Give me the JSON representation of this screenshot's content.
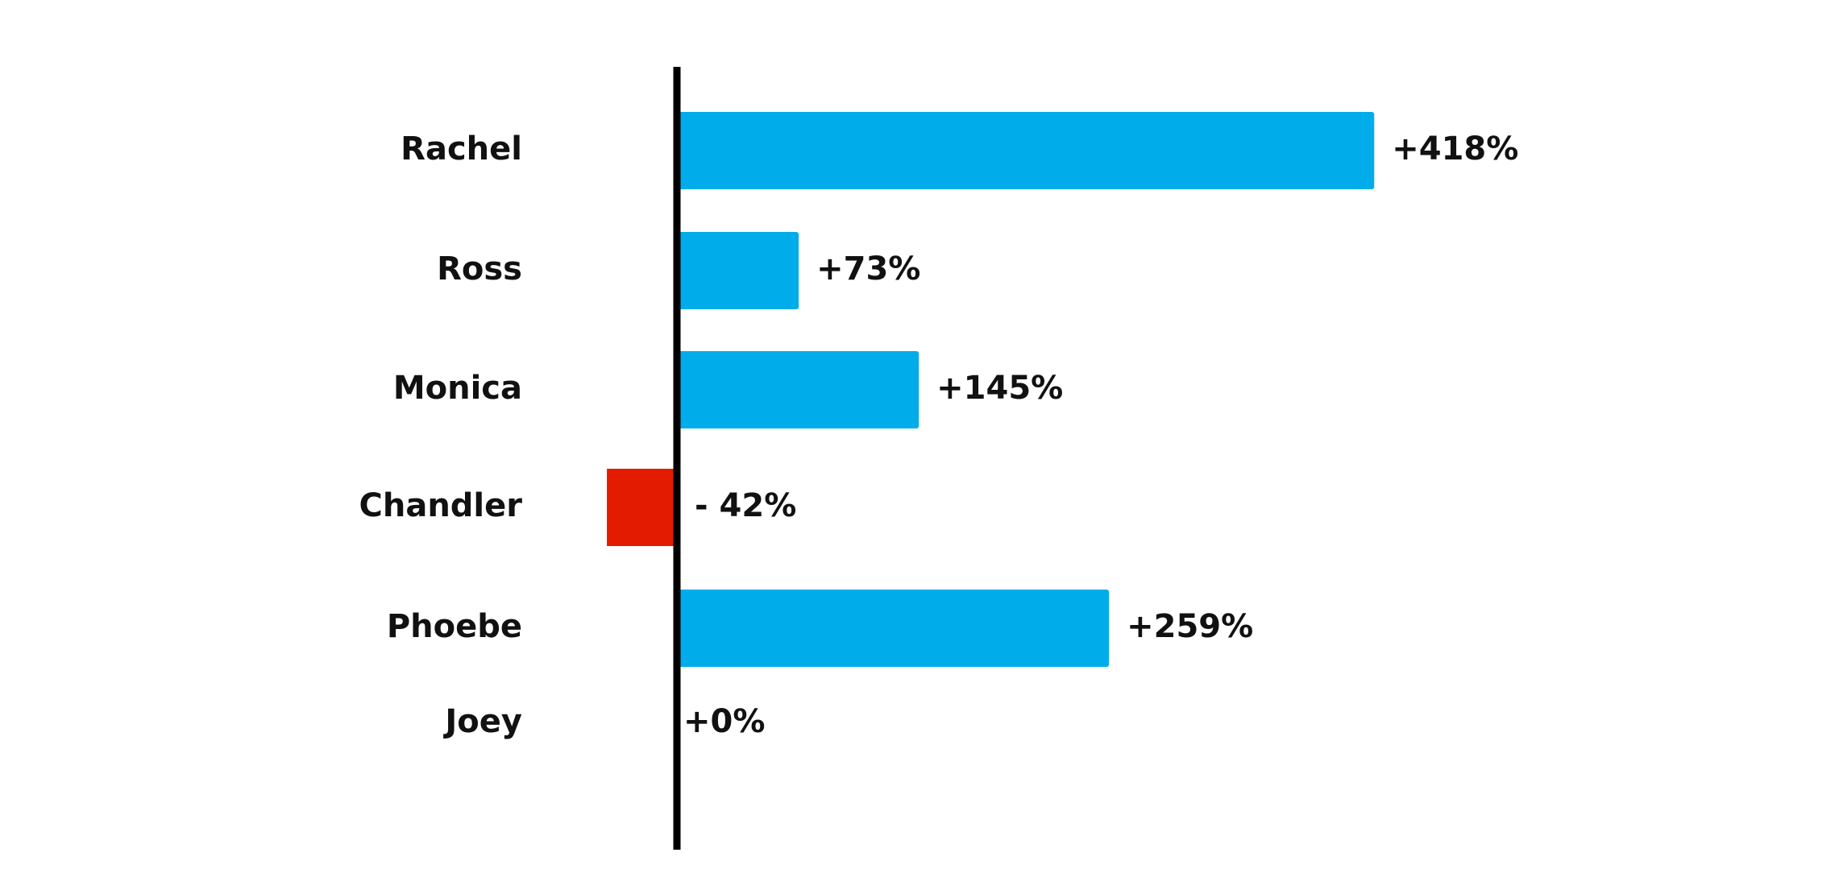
{
  "chart_data": {
    "type": "hbar",
    "categories": [
      "Rachel",
      "Ross",
      "Monica",
      "Chandler",
      "Phoebe",
      "Joey"
    ],
    "values": [
      418,
      73,
      145,
      -42,
      259,
      0
    ],
    "value_labels": [
      "+418%",
      "+73%",
      "+145%",
      "- 42%",
      "+259%",
      "+0%"
    ],
    "colors": [
      "#00acea",
      "#00acea",
      "#00acea",
      "#e31b00",
      "#00acea",
      "#00acea"
    ]
  }
}
